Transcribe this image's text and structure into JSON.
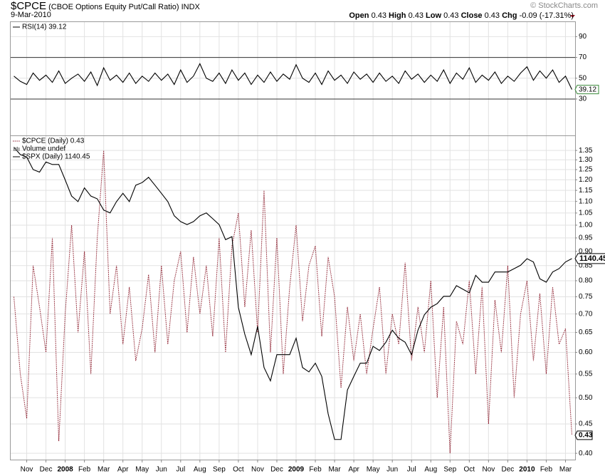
{
  "header": {
    "symbol": "$CPCE",
    "name": "(CBOE Options Equity Put/Call Ratio)",
    "exchange": "INDX",
    "date": "9-Mar-2010",
    "watermark": "© StockCharts.com",
    "stats": [
      {
        "label": "Open",
        "value": "0.43"
      },
      {
        "label": "High",
        "value": "0.43"
      },
      {
        "label": "Low",
        "value": "0.43"
      },
      {
        "label": "Close",
        "value": "0.43"
      },
      {
        "label": "Chg",
        "value": "-0.09 (-17.31%)"
      }
    ]
  },
  "chart_data": [
    {
      "type": "line",
      "ylim": [
        -5,
        104
      ],
      "yticks": [
        30,
        50,
        70,
        90
      ],
      "levels": [
        70,
        30
      ],
      "grid": true,
      "series": [
        {
          "name": "RSI(14) 39.12",
          "color": "#000000",
          "values": [
            52,
            47,
            44,
            55,
            48,
            53,
            46,
            57,
            45,
            50,
            54,
            47,
            56,
            43,
            60,
            48,
            53,
            46,
            55,
            45,
            52,
            47,
            55,
            48,
            54,
            44,
            58,
            46,
            52,
            64,
            50,
            47,
            55,
            45,
            58,
            48,
            55,
            44,
            53,
            46,
            56,
            47,
            54,
            49,
            63,
            50,
            46,
            55,
            44,
            57,
            48,
            53,
            45,
            56,
            49,
            54,
            46,
            55,
            47,
            52,
            45,
            57,
            49,
            54,
            46,
            53,
            47,
            58,
            45,
            55,
            49,
            60,
            46,
            53,
            48,
            56,
            45,
            52,
            47,
            55,
            61,
            48,
            57,
            50,
            58,
            46,
            52,
            39.12
          ]
        }
      ]
    },
    {
      "type": "line",
      "log": true,
      "grid": true,
      "ylim": [
        0.39,
        1.43
      ],
      "yticks": [
        {
          "value": 0.4,
          "label": "0.40"
        },
        {
          "value": 0.45,
          "label": "0.45"
        },
        {
          "value": 0.5,
          "label": "0.50"
        },
        {
          "value": 0.55,
          "label": "0.55"
        },
        {
          "value": 0.6,
          "label": "0.60"
        },
        {
          "value": 0.65,
          "label": "0.65"
        },
        {
          "value": 0.7,
          "label": "0.70"
        },
        {
          "value": 0.75,
          "label": "0.75"
        },
        {
          "value": 0.8,
          "label": "0.80"
        },
        {
          "value": 0.85,
          "label": "0.85"
        },
        {
          "value": 0.9,
          "label": "0.90"
        },
        {
          "value": 0.95,
          "label": "0.95"
        },
        {
          "value": 1,
          "label": "1.00"
        },
        {
          "value": 1.05,
          "label": "1.05"
        },
        {
          "value": 1.1,
          "label": "1.10"
        },
        {
          "value": 1.15,
          "label": "1.15"
        },
        {
          "value": 1.2,
          "label": "1.20"
        },
        {
          "value": 1.25,
          "label": "1.25"
        },
        {
          "value": 1.3,
          "label": "1.30"
        },
        {
          "value": 1.35,
          "label": "1.35"
        }
      ],
      "y2lim": [
        663,
        1587
      ],
      "y2log": true,
      "categories": [
        null,
        null,
        "Nov",
        null,
        null,
        "Dec",
        null,
        null,
        "2008",
        null,
        null,
        "Feb",
        null,
        null,
        "Mar",
        null,
        null,
        "Apr",
        null,
        null,
        "May",
        null,
        null,
        "Jun",
        null,
        null,
        "Jul",
        null,
        null,
        "Aug",
        null,
        null,
        "Sep",
        null,
        null,
        "Oct",
        null,
        null,
        "Nov",
        null,
        null,
        "Dec",
        null,
        null,
        "2009",
        null,
        null,
        "Feb",
        null,
        null,
        "Mar",
        null,
        null,
        "Apr",
        null,
        null,
        "May",
        null,
        null,
        "Jun",
        null,
        null,
        "Jul",
        null,
        null,
        "Aug",
        null,
        null,
        "Sep",
        null,
        null,
        "Oct",
        null,
        null,
        "Nov",
        null,
        null,
        "Dec",
        null,
        null,
        "2010",
        null,
        null,
        "Feb",
        null,
        null,
        "Mar",
        null
      ],
      "volume_label": "Volume undef",
      "series": [
        {
          "name": "$CPCE (Daily) 0.43",
          "color": "#8b1a2a",
          "dashed": true,
          "values": [
            0.75,
            0.55,
            0.46,
            0.85,
            0.72,
            0.6,
            0.95,
            0.42,
            0.7,
            1.0,
            0.65,
            0.9,
            0.55,
            0.95,
            1.35,
            0.7,
            0.85,
            0.62,
            0.78,
            0.58,
            0.66,
            0.82,
            0.6,
            0.85,
            0.62,
            0.8,
            0.9,
            0.65,
            0.88,
            0.7,
            0.85,
            0.64,
            0.95,
            0.6,
            0.92,
            1.05,
            0.72,
            0.98,
            0.65,
            1.15,
            0.6,
            0.95,
            0.55,
            0.78,
            1.0,
            0.68,
            0.85,
            0.92,
            0.64,
            0.88,
            0.75,
            0.52,
            0.72,
            0.58,
            0.7,
            0.55,
            0.66,
            0.78,
            0.55,
            0.7,
            0.62,
            0.86,
            0.58,
            0.72,
            0.6,
            0.8,
            0.5,
            0.72,
            0.4,
            0.68,
            0.62,
            0.8,
            0.55,
            0.78,
            0.45,
            0.74,
            0.6,
            0.85,
            0.5,
            0.7,
            0.8,
            0.58,
            0.76,
            0.55,
            0.78,
            0.62,
            0.66,
            0.43
          ]
        },
        {
          "name": "$SPX (Daily) 1140.45",
          "color": "#000000",
          "axis": "y2",
          "values": [
            1540,
            1510,
            1500,
            1450,
            1440,
            1480,
            1470,
            1470,
            1410,
            1350,
            1330,
            1380,
            1350,
            1340,
            1300,
            1290,
            1330,
            1360,
            1330,
            1390,
            1400,
            1420,
            1390,
            1360,
            1330,
            1280,
            1260,
            1250,
            1260,
            1280,
            1290,
            1270,
            1250,
            1200,
            1210,
            1000,
            930,
            880,
            950,
            850,
            820,
            880,
            880,
            880,
            920,
            850,
            840,
            860,
            830,
            750,
            700,
            700,
            800,
            830,
            860,
            860,
            900,
            890,
            910,
            940,
            920,
            910,
            880,
            940,
            980,
            1000,
            1010,
            1030,
            1030,
            1060,
            1050,
            1040,
            1090,
            1070,
            1070,
            1100,
            1100,
            1100,
            1110,
            1120,
            1140,
            1130,
            1080,
            1070,
            1100,
            1110,
            1130,
            1140.45
          ]
        }
      ]
    }
  ]
}
